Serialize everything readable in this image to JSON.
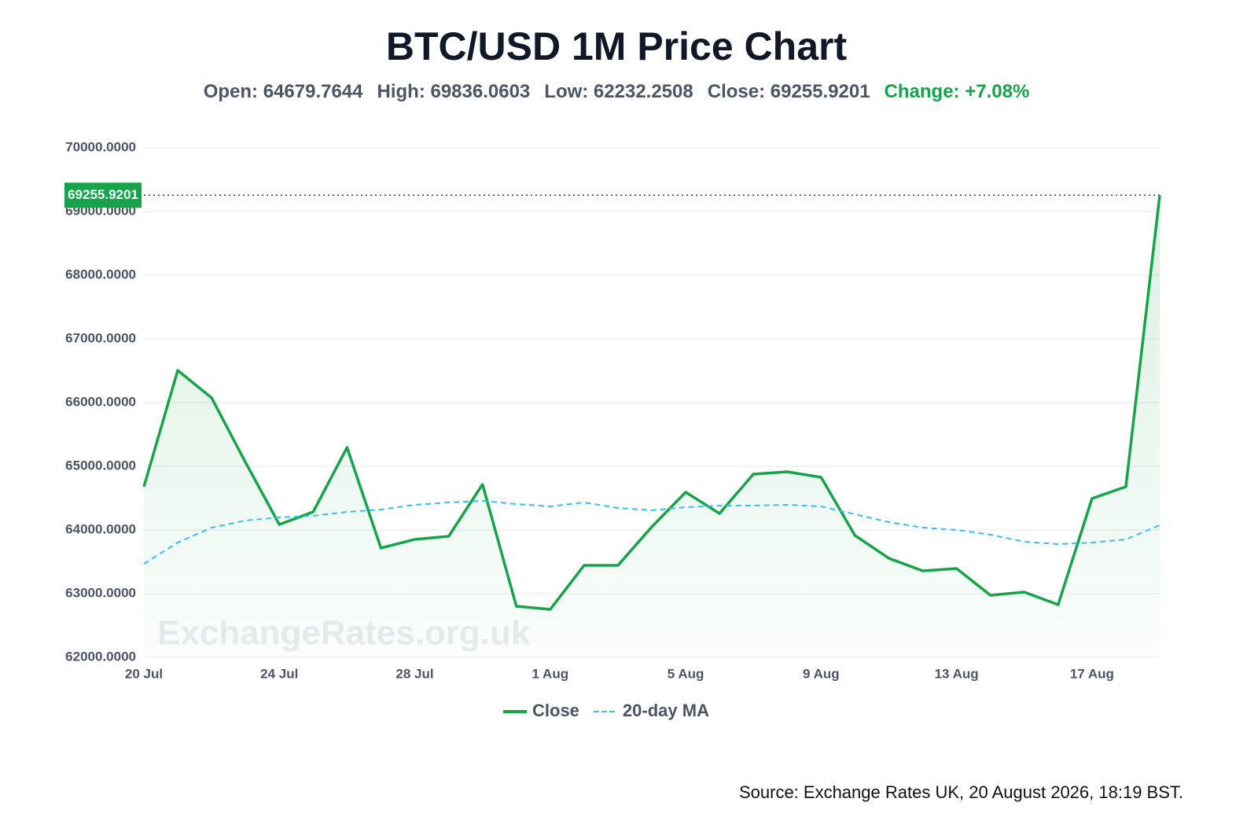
{
  "chart_data": {
    "type": "line",
    "title": "BTC/USD 1M Price Chart",
    "stats": [
      "Open: 64679.7644",
      "High: 69836.0603",
      "Low: 62232.2508",
      "Close: 69255.9201"
    ],
    "change": "Change: +7.08%",
    "watermark": "ExchangeRates.org.uk",
    "source": "Source: Exchange Rates UK, 20 August 2026, 18:19 BST.",
    "categories": [
      "20 Jul",
      null,
      null,
      null,
      "24 Jul",
      null,
      null,
      null,
      "28 Jul",
      null,
      null,
      null,
      "1 Aug",
      null,
      null,
      null,
      "5 Aug",
      null,
      null,
      null,
      "9 Aug",
      null,
      null,
      null,
      "13 Aug",
      null,
      null,
      null,
      "17 Aug",
      null,
      null
    ],
    "series": [
      {
        "name": "Close",
        "color": "#16a34a",
        "values": [
          64679.7644,
          66506,
          66074,
          65062,
          64086,
          64284,
          65296,
          63716,
          63852,
          63901,
          64716,
          62802,
          62753,
          63444,
          63444,
          64049,
          64593,
          64259,
          64877,
          64914,
          64827,
          63914,
          63556,
          63358,
          63395,
          62975,
          63025,
          62827,
          64494,
          64679,
          69255.9201
        ]
      },
      {
        "name": "20-day MA",
        "color": "#38bdf8",
        "dashed": true,
        "values": [
          63469,
          63802,
          64037,
          64148,
          64198,
          64222,
          64284,
          64321,
          64395,
          64432,
          64457,
          64407,
          64370,
          64432,
          64346,
          64309,
          64358,
          64383,
          64383,
          64395,
          64370,
          64247,
          64123,
          64037,
          64000,
          63926,
          63815,
          63778,
          63802,
          63852,
          64074
        ]
      }
    ],
    "ylim": [
      62000,
      70000
    ],
    "yticks": [
      {
        "value": 62000,
        "label": "62000.0000"
      },
      {
        "value": 63000,
        "label": "63000.0000"
      },
      {
        "value": 64000,
        "label": "64000.0000"
      },
      {
        "value": 65000,
        "label": "65000.0000"
      },
      {
        "value": 66000,
        "label": "66000.0000"
      },
      {
        "value": 67000,
        "label": "67000.0000"
      },
      {
        "value": 68000,
        "label": "68000.0000"
      },
      {
        "value": 69000,
        "label": "69000.0000"
      },
      {
        "value": 70000,
        "label": "70000.0000"
      }
    ],
    "grid": true,
    "legend": "bottom"
  }
}
